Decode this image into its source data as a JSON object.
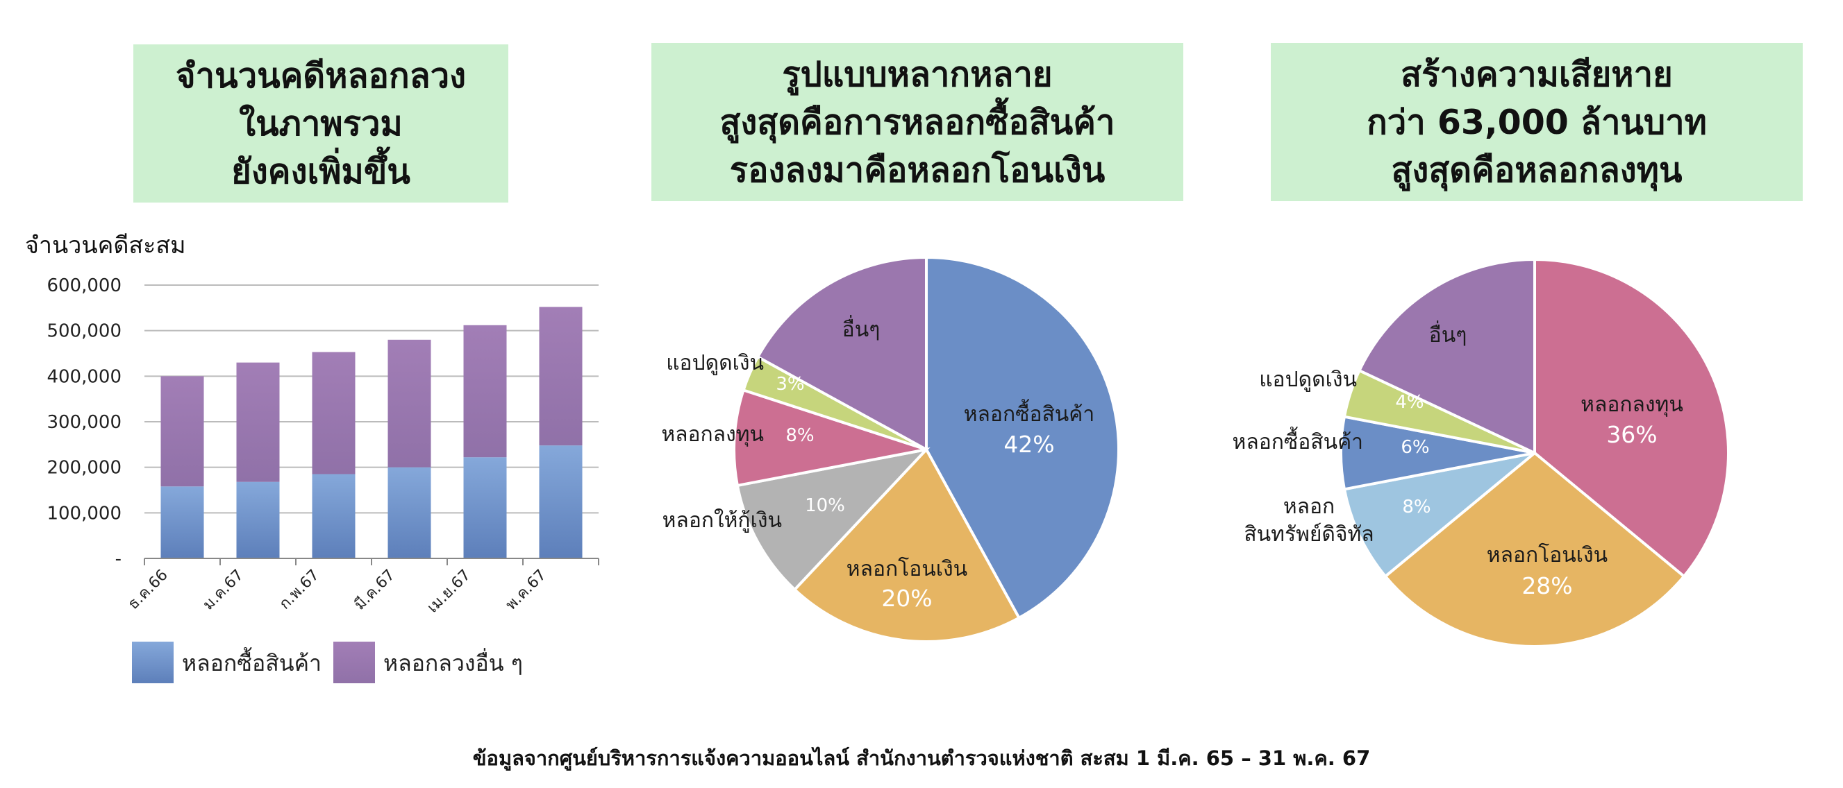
{
  "headers": [
    {
      "lines": [
        "จำนวนคดีหลอกลวง",
        "ในภาพรวม",
        "ยังคงเพิ่มขึ้น"
      ]
    },
    {
      "lines": [
        "รูปแบบหลากหลาย",
        "สูงสุดคือการหลอกซื้อสินค้า",
        "รองลงมาคือหลอกโอนเงิน"
      ]
    },
    {
      "lines": [
        "สร้างความเสียหาย",
        "กว่า 63,000 ล้านบาท",
        "สูงสุดคือหลอกลงทุน"
      ]
    }
  ],
  "footer": "ข้อมูลจากศูนย์บริหารการแจ้งความออนไลน์ สำนักงานตำรวจแห่งชาติ สะสม 1 มี.ค. 65 – 31 พ.ค. 67",
  "colors": {
    "blue": "#6b8ec6",
    "purple": "#9b77ae",
    "orange": "#e6b563",
    "gray": "#b3b3b3",
    "pink": "#cc6f92",
    "green": "#c6d57c",
    "lightblue": "#9ec5e0"
  },
  "chart_data": [
    {
      "type": "bar",
      "stacked": true,
      "ylabel": "จำนวนคดีสะสม",
      "categories": [
        "ธ.ค.66",
        "ม.ค.67",
        "ก.พ.67",
        "มี.ค.67",
        "เม.ย.67",
        "พ.ค.67"
      ],
      "yticks": [
        "-",
        "100,000",
        "200,000",
        "300,000",
        "400,000",
        "500,000",
        "600,000"
      ],
      "ylim": [
        0,
        600000
      ],
      "grid": true,
      "series": [
        {
          "name": "หลอกซื้อสินค้า",
          "values": [
            158000,
            168000,
            185000,
            200000,
            222000,
            248000
          ]
        },
        {
          "name": "หลอกลวงอื่น ๆ",
          "values": [
            242000,
            262000,
            268000,
            280000,
            290000,
            304000
          ]
        }
      ]
    },
    {
      "type": "pie",
      "slices": [
        {
          "label": "หลอกซื้อสินค้า",
          "value": 42,
          "pct": "42%"
        },
        {
          "label": "หลอกโอนเงิน",
          "value": 20,
          "pct": "20%"
        },
        {
          "label": "หลอกให้กู้เงิน",
          "value": 10,
          "pct": "10%"
        },
        {
          "label": "หลอกลงทุน",
          "value": 8,
          "pct": "8%"
        },
        {
          "label": "แอปดูดเงิน",
          "value": 3,
          "pct": "3%"
        },
        {
          "label": "อื่นๆ",
          "value": 17,
          "pct": ""
        }
      ]
    },
    {
      "type": "pie",
      "slices": [
        {
          "label": "หลอกลงทุน",
          "value": 36,
          "pct": "36%"
        },
        {
          "label": "หลอกโอนเงิน",
          "value": 28,
          "pct": "28%"
        },
        {
          "label": "หลอก สินทรัพย์ดิจิทัล",
          "value": 8,
          "pct": "8%"
        },
        {
          "label": "หลอกซื้อสินค้า",
          "value": 6,
          "pct": "6%"
        },
        {
          "label": "แอปดูดเงิน",
          "value": 4,
          "pct": "4%"
        },
        {
          "label": "อื่นๆ",
          "value": 18,
          "pct": ""
        }
      ]
    }
  ]
}
